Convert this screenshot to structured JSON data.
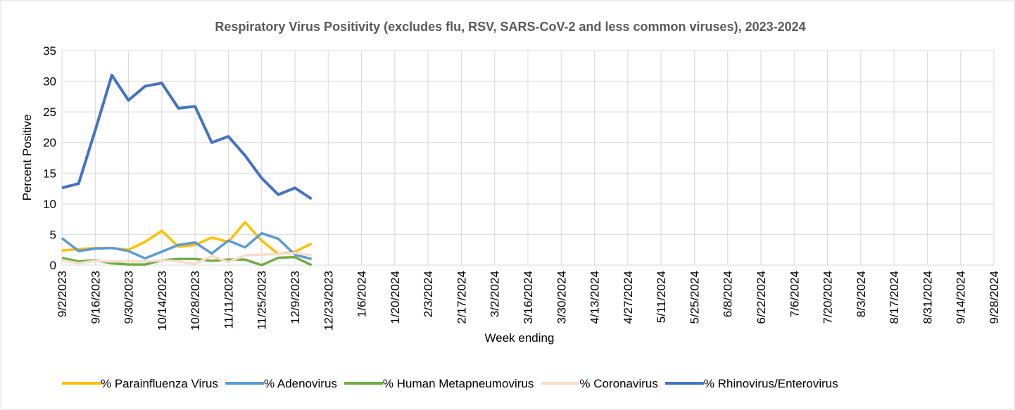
{
  "chart_data": {
    "type": "line",
    "title": "Respiratory Virus Positivity (excludes flu, RSV, SARS-CoV-2 and less common viruses), 2023-2024",
    "y_label": "Percent Positive",
    "x_label": "Week ending",
    "categories": [
      "9/2/2023",
      null,
      "9/16/2023",
      null,
      "9/30/2023",
      null,
      "10/14/2023",
      null,
      "10/28/2023",
      null,
      "11/11/2023",
      null,
      "11/25/2023",
      null,
      "12/9/2023",
      null,
      "12/23/2023",
      null,
      "1/6/2024",
      null,
      "1/20/2024",
      null,
      "2/3/2024",
      null,
      "2/17/2024",
      null,
      "3/2/2024",
      null,
      "3/16/2024",
      null,
      "3/30/2024",
      null,
      "4/13/2024",
      null,
      "4/27/2024",
      null,
      "5/11/2024",
      null,
      "5/25/2024",
      null,
      "6/8/2024",
      null,
      "6/22/2024",
      null,
      "7/6/2024",
      null,
      "7/20/2024",
      null,
      "8/3/2024",
      null,
      "8/17/2024",
      null,
      "8/31/2024",
      null,
      "9/14/2024",
      null,
      "9/28/2024"
    ],
    "series": [
      {
        "name": "% Parainfluenza Virus",
        "color": "#ffc000",
        "values": [
          2.4,
          2.6,
          2.8,
          2.8,
          2.5,
          3.8,
          5.6,
          3,
          3.3,
          4.5,
          3.8,
          7,
          4,
          1.8,
          2.2,
          3.5,
          null,
          null,
          null,
          null,
          null,
          null,
          null,
          null,
          null,
          null,
          null,
          null,
          null,
          null,
          null,
          null,
          null,
          null,
          null,
          null,
          null,
          null,
          null,
          null,
          null,
          null,
          null,
          null,
          null,
          null,
          null,
          null,
          null,
          null,
          null,
          null,
          null,
          null,
          null,
          null,
          null
        ]
      },
      {
        "name": "% Adenovirus",
        "color": "#5b9bd5",
        "values": [
          4.4,
          2.3,
          2.7,
          2.8,
          2.3,
          1.1,
          2.2,
          3.3,
          3.7,
          1.9,
          4,
          2.9,
          5.2,
          4.3,
          1.7,
          1,
          null,
          null,
          null,
          null,
          null,
          null,
          null,
          null,
          null,
          null,
          null,
          null,
          null,
          null,
          null,
          null,
          null,
          null,
          null,
          null,
          null,
          null,
          null,
          null,
          null,
          null,
          null,
          null,
          null,
          null,
          null,
          null,
          null,
          null,
          null,
          null,
          null,
          null,
          null,
          null,
          null
        ]
      },
      {
        "name": "% Human Metapneumovirus",
        "color": "#70ad47",
        "values": [
          1.2,
          0.6,
          0.8,
          0.3,
          0.1,
          0.1,
          0.8,
          1,
          1,
          0.7,
          0.9,
          0.9,
          0,
          1.2,
          1.3,
          0,
          null,
          null,
          null,
          null,
          null,
          null,
          null,
          null,
          null,
          null,
          null,
          null,
          null,
          null,
          null,
          null,
          null,
          null,
          null,
          null,
          null,
          null,
          null,
          null,
          null,
          null,
          null,
          null,
          null,
          null,
          null,
          null,
          null,
          null,
          null,
          null,
          null,
          null,
          null,
          null,
          null
        ]
      },
      {
        "name": "% Coronavirus",
        "color": "#f8dccc",
        "values": [
          0.8,
          0.3,
          0.7,
          0.6,
          0.6,
          0.6,
          0.8,
          0.6,
          0.2,
          1.5,
          0.5,
          1.6,
          1.7,
          1.8,
          2,
          1.6,
          null,
          null,
          null,
          null,
          null,
          null,
          null,
          null,
          null,
          null,
          null,
          null,
          null,
          null,
          null,
          null,
          null,
          null,
          null,
          null,
          null,
          null,
          null,
          null,
          null,
          null,
          null,
          null,
          null,
          null,
          null,
          null,
          null,
          null,
          null,
          null,
          null,
          null,
          null,
          null,
          null
        ]
      },
      {
        "name": "% Rhinovirus/Enterovirus",
        "color": "#4472c4",
        "values": [
          12.6,
          13.3,
          22,
          31,
          26.9,
          29.2,
          29.7,
          25.6,
          25.9,
          20,
          21,
          17.9,
          14.2,
          11.5,
          12.6,
          10.8,
          null,
          null,
          null,
          null,
          null,
          null,
          null,
          null,
          null,
          null,
          null,
          null,
          null,
          null,
          null,
          null,
          null,
          null,
          null,
          null,
          null,
          null,
          null,
          null,
          null,
          null,
          null,
          null,
          null,
          null,
          null,
          null,
          null,
          null,
          null,
          null,
          null,
          null,
          null,
          null,
          null
        ]
      }
    ],
    "ylim": [
      0,
      35
    ],
    "yticks": [
      0,
      5,
      10,
      15,
      20,
      25,
      30,
      35
    ],
    "grid": true,
    "legend": "bottom"
  }
}
